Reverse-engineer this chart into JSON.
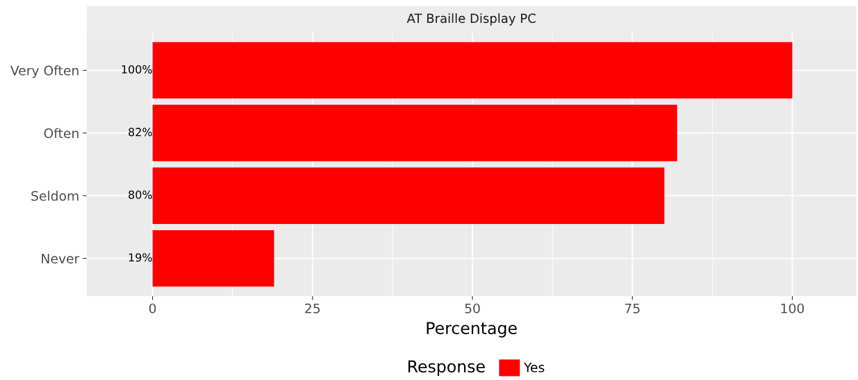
{
  "chart_data": {
    "type": "bar",
    "orientation": "horizontal",
    "title": "AT Braille Display PC",
    "xlabel": "Percentage",
    "legend_title": "Response",
    "categories": [
      "Very Often",
      "Often",
      "Seldom",
      "Never"
    ],
    "series": [
      {
        "name": "Yes",
        "color": "#ff0000",
        "values": [
          100,
          82,
          80,
          19
        ],
        "value_labels": [
          "100%",
          "82%",
          "80%",
          "19%"
        ]
      }
    ],
    "xlim": [
      -10.3,
      110
    ],
    "xticks": [
      0,
      25,
      50,
      75,
      100
    ],
    "grid": true,
    "legend": "bottom"
  }
}
